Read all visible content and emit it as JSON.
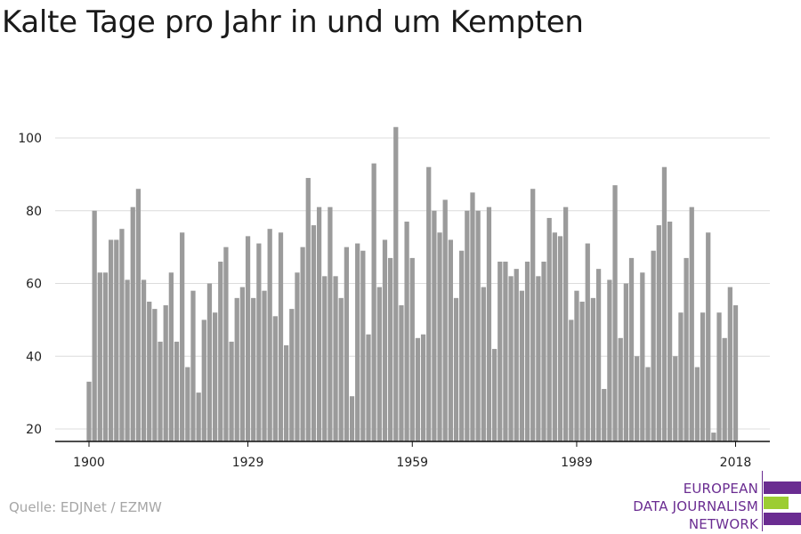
{
  "title": "Kalte Tage pro Jahr in und um Kempten",
  "source": "Quelle: EDJNet / EZMW",
  "logo": {
    "lines": [
      "EUROPEAN",
      "DATA JOURNALISM",
      "NETWORK"
    ],
    "colors": {
      "purple": "#6a2c91",
      "green": "#9ccd32"
    }
  },
  "chart_data": {
    "type": "bar",
    "title": "Kalte Tage pro Jahr in und um Kempten",
    "xlabel": "",
    "ylabel": "",
    "x_start": 1900,
    "x_end": 2018,
    "x_ticks": [
      1900,
      1929,
      1959,
      1989,
      2018
    ],
    "y_ticks": [
      20,
      40,
      60,
      80,
      100
    ],
    "ylim": [
      17,
      105
    ],
    "grid": true,
    "bar_color": "#9b9b9b",
    "years": [
      1900,
      1901,
      1902,
      1903,
      1904,
      1905,
      1906,
      1907,
      1908,
      1909,
      1910,
      1911,
      1912,
      1913,
      1914,
      1915,
      1916,
      1917,
      1918,
      1919,
      1920,
      1921,
      1922,
      1923,
      1924,
      1925,
      1926,
      1927,
      1928,
      1929,
      1930,
      1931,
      1932,
      1933,
      1934,
      1935,
      1936,
      1937,
      1938,
      1939,
      1940,
      1941,
      1942,
      1943,
      1944,
      1945,
      1946,
      1947,
      1948,
      1949,
      1950,
      1951,
      1952,
      1953,
      1954,
      1955,
      1956,
      1957,
      1958,
      1959,
      1960,
      1961,
      1962,
      1963,
      1964,
      1965,
      1966,
      1967,
      1968,
      1969,
      1970,
      1971,
      1972,
      1973,
      1974,
      1975,
      1976,
      1977,
      1978,
      1979,
      1980,
      1981,
      1982,
      1983,
      1984,
      1985,
      1986,
      1987,
      1988,
      1989,
      1990,
      1991,
      1992,
      1993,
      1994,
      1995,
      1996,
      1997,
      1998,
      1999,
      2000,
      2001,
      2002,
      2003,
      2004,
      2005,
      2006,
      2007,
      2008,
      2009,
      2010,
      2011,
      2012,
      2013,
      2014,
      2015,
      2016,
      2017,
      2018
    ],
    "values": [
      33,
      80,
      63,
      63,
      72,
      72,
      75,
      61,
      81,
      86,
      61,
      55,
      53,
      44,
      54,
      63,
      44,
      74,
      37,
      58,
      30,
      50,
      60,
      52,
      66,
      70,
      44,
      56,
      59,
      73,
      56,
      71,
      58,
      75,
      51,
      74,
      43,
      53,
      63,
      70,
      89,
      76,
      81,
      62,
      81,
      62,
      56,
      70,
      29,
      71,
      69,
      46,
      93,
      59,
      72,
      67,
      103,
      54,
      77,
      67,
      45,
      46,
      92,
      80,
      74,
      83,
      72,
      56,
      69,
      80,
      85,
      80,
      59,
      81,
      42,
      66,
      66,
      62,
      64,
      58,
      66,
      86,
      62,
      66,
      78,
      74,
      73,
      81,
      50,
      58,
      55,
      71,
      56,
      64,
      31,
      61,
      87,
      45,
      60,
      67,
      40,
      63,
      37,
      69,
      76,
      92,
      77,
      40,
      52,
      67,
      81,
      37,
      52,
      74,
      19,
      52,
      45,
      59,
      54
    ]
  }
}
